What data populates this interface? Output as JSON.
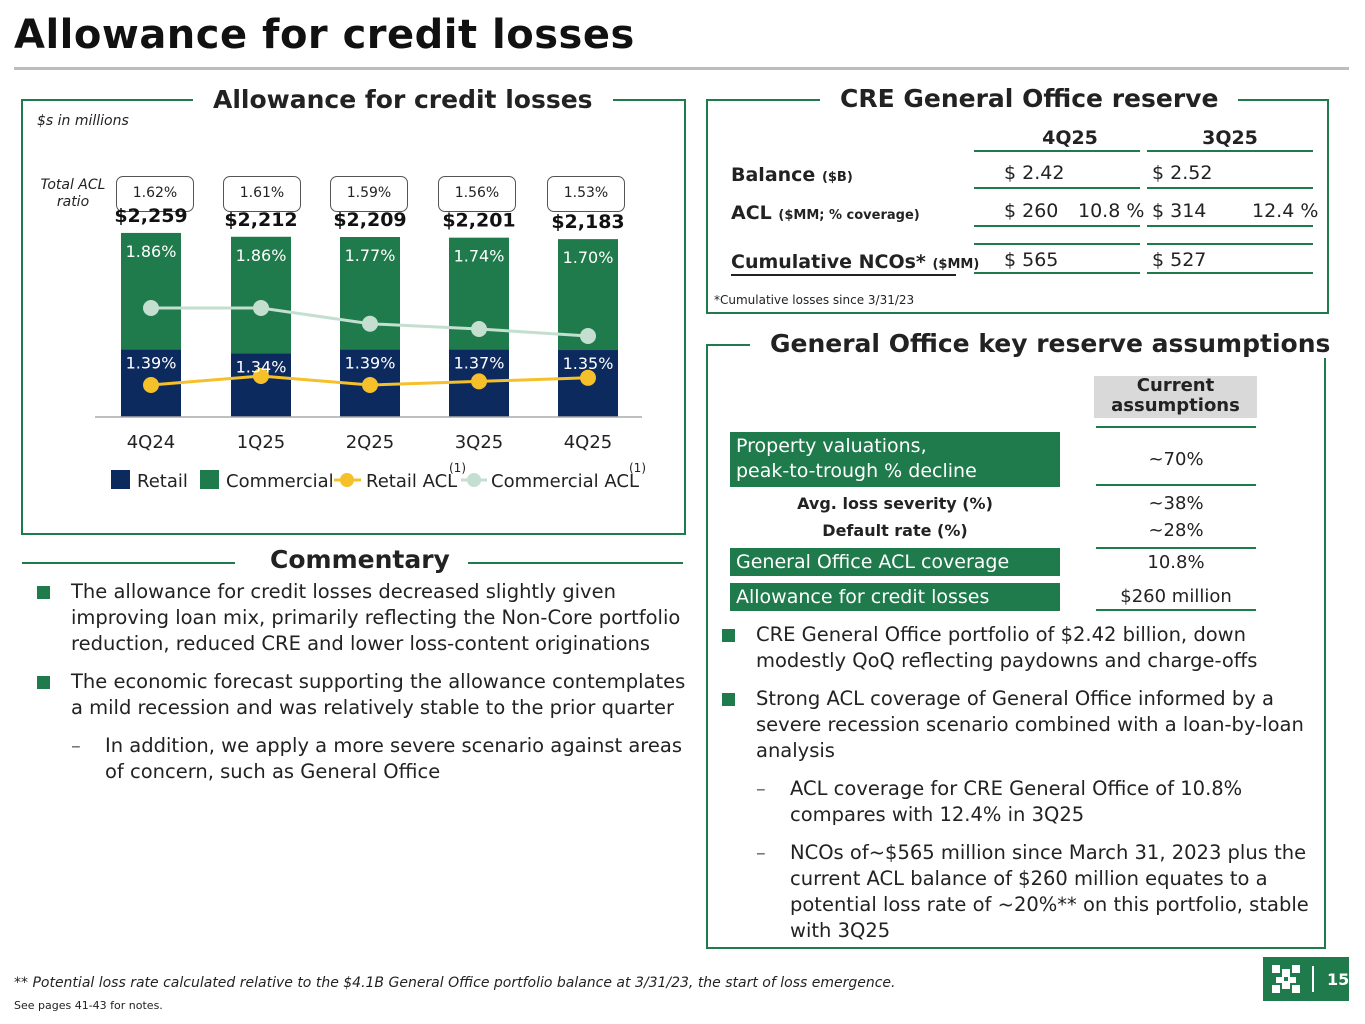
{
  "page": {
    "title": "Allowance for credit losses",
    "page_number": "15",
    "footnote": "** Potential loss rate calculated relative to the $4.1B General Office portfolio balance at 3/31/23, the start of loss emergence.",
    "see_notes": "See pages 41-43 for notes."
  },
  "acl_panel": {
    "title": "Allowance for credit losses",
    "units": "$s in millions",
    "ratio_label": "Total ACL ratio"
  },
  "chart_data": {
    "type": "bar",
    "stacked": true,
    "categories": [
      "4Q24",
      "1Q25",
      "2Q25",
      "3Q25",
      "4Q25"
    ],
    "totals": [
      "$2,259",
      "$2,212",
      "$2,209",
      "$2,201",
      "$2,183"
    ],
    "total_values": [
      2259,
      2212,
      2209,
      2201,
      2183
    ],
    "total_acl_ratio": [
      "1.62%",
      "1.61%",
      "1.59%",
      "1.56%",
      "1.53%"
    ],
    "series": [
      {
        "name": "Retail",
        "color": "#0d2a5e",
        "values": [
          830,
          780,
          830,
          830,
          822
        ],
        "labels": [
          "1.39%",
          "1.34%",
          "1.39%",
          "1.37%",
          "1.35%"
        ]
      },
      {
        "name": "Commercial",
        "color": "#1f7a4c",
        "values": [
          1429,
          1432,
          1379,
          1371,
          1361
        ],
        "labels": [
          "1.86%",
          "1.86%",
          "1.77%",
          "1.74%",
          "1.70%"
        ]
      },
      {
        "name": "Retail ACL",
        "type": "line",
        "color": "#f5c02a",
        "values": [
          1.39,
          1.34,
          1.39,
          1.37,
          1.35
        ]
      },
      {
        "name": "Commercial ACL",
        "type": "line",
        "color": "#c4dfd0",
        "values": [
          1.86,
          1.86,
          1.77,
          1.74,
          1.7
        ]
      }
    ],
    "legend": [
      "Retail",
      "Commercial",
      "Retail ACL",
      "Commercial ACL"
    ],
    "legend_note": "(1)",
    "ylim": [
      0,
      2700
    ]
  },
  "cre": {
    "title": "CRE General Office reserve",
    "col1": "4Q25",
    "col2": "3Q25",
    "rows": [
      {
        "label": "Balance",
        "unit": "($B)",
        "v1a": "$ 2.42",
        "v1b": "",
        "v2a": "$  2.52",
        "v2b": ""
      },
      {
        "label": "ACL",
        "unit": "($MM; % coverage)",
        "v1a": "$  260",
        "v1b": "10.8 %",
        "v2a": "$    314",
        "v2b": "12.4 %"
      },
      {
        "label": "Cumulative NCOs*",
        "unit": "($MM)",
        "v1a": "$  565",
        "v1b": "",
        "v2a": "$   527",
        "v2b": ""
      }
    ],
    "note": "*Cumulative losses since 3/31/23"
  },
  "assumptions": {
    "title": "General Office key reserve assumptions",
    "col_header": "Current assumptions",
    "prop_val_label_1": "Property valuations,",
    "prop_val_label_2": "peak-to-trough % decline",
    "prop_val": "~70%",
    "loss_sev_label": "Avg. loss severity (%)",
    "loss_sev": "~38%",
    "default_label": "Default rate (%)",
    "default_val": "~28%",
    "coverage_label": "General Office ACL coverage",
    "coverage_val": "10.8%",
    "allowance_label": "Allowance for credit losses",
    "allowance_val": "$260 million",
    "bullets": [
      "CRE General Office portfolio of $2.42 billion, down modestly QoQ reflecting paydowns and charge-offs",
      "Strong ACL coverage of General Office informed by a severe recession scenario combined with a loan-by-loan analysis"
    ],
    "subbullets": [
      "ACL coverage for CRE General Office of 10.8% compares with 12.4% in 3Q25",
      "NCOs of~$565 million since March 31, 2023 plus the current ACL balance of $260 million equates to a potential loss rate of ~20%** on this portfolio, stable with 3Q25"
    ]
  },
  "commentary": {
    "title": "Commentary",
    "bullets": [
      "The allowance for credit losses decreased slightly given improving loan mix, primarily reflecting the Non-Core portfolio reduction, reduced CRE and lower loss-content originations",
      "The economic forecast supporting the allowance contemplates a mild recession and was relatively stable to the prior quarter"
    ],
    "sub": "In addition, we apply a more severe scenario against areas of concern, such as General Office"
  }
}
